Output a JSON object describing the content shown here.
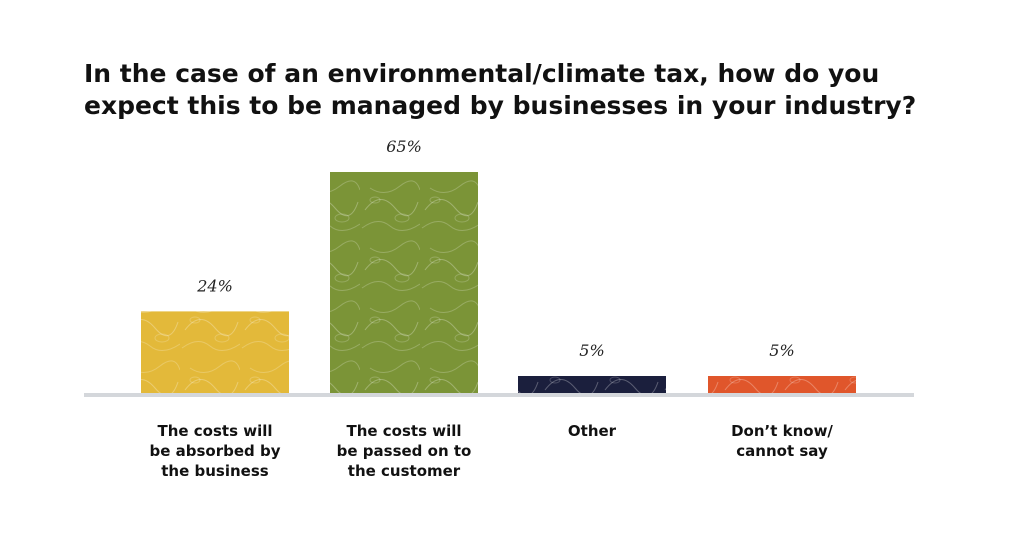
{
  "title": "In the case of an environmental/climate tax, how do you\nexpect this to be managed by businesses in your industry?",
  "chart_data": {
    "type": "bar",
    "title": "In the case of an environmental/climate tax, how do you expect this to be managed by businesses in your industry?",
    "xlabel": "",
    "ylabel": "",
    "categories": [
      [
        "The costs will",
        "be absorbed by",
        "the business"
      ],
      [
        "The costs will",
        "be passed on to",
        "the customer"
      ],
      [
        "Other"
      ],
      [
        "Don’t know/",
        "cannot say"
      ]
    ],
    "values": [
      24,
      65,
      5,
      5
    ],
    "value_labels": [
      "24%",
      "65%",
      "5%",
      "5%"
    ],
    "colors": [
      "#e3b93a",
      "#7b9437",
      "#1b1f3d",
      "#e0562b"
    ],
    "ylim": [
      0,
      70
    ],
    "grid": false,
    "legend": "none",
    "baseline_color": "#d4d7db"
  }
}
